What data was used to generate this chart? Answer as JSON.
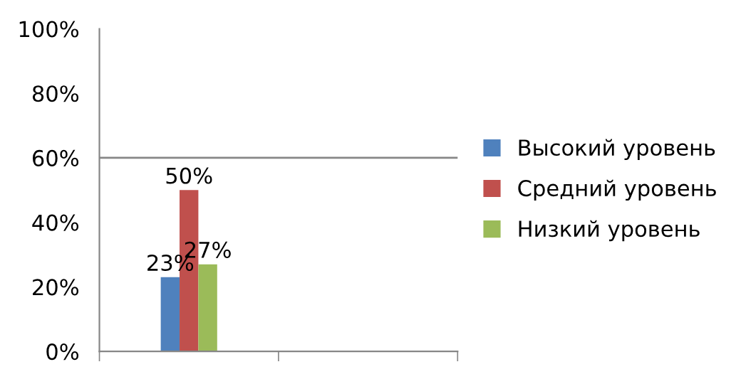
{
  "chart_data": {
    "type": "bar",
    "categories": [
      null,
      null
    ],
    "series": [
      {
        "name": "Высокий уровень",
        "color": "#4f81bd",
        "values": [
          23,
          null
        ],
        "value_labels": [
          "23%",
          null
        ]
      },
      {
        "name": "Средний уровень",
        "color": "#c0504d",
        "values": [
          50,
          null
        ],
        "value_labels": [
          "50%",
          null
        ]
      },
      {
        "name": "Низкий уровень",
        "color": "#9bbb59",
        "values": [
          27,
          null
        ],
        "value_labels": [
          "27%",
          null
        ]
      }
    ],
    "ylim": [
      0,
      100
    ],
    "yticks": [
      {
        "value": 0,
        "label": "0%"
      },
      {
        "value": 20,
        "label": "20%"
      },
      {
        "value": 40,
        "label": "40%"
      },
      {
        "value": 60,
        "label": "60%"
      },
      {
        "value": 80,
        "label": "80%"
      },
      {
        "value": 100,
        "label": "100%"
      }
    ],
    "ref_lines": [
      {
        "axis": "y",
        "value": 60,
        "label": null,
        "color": "#868686"
      }
    ],
    "legend": "right",
    "grid": false
  }
}
